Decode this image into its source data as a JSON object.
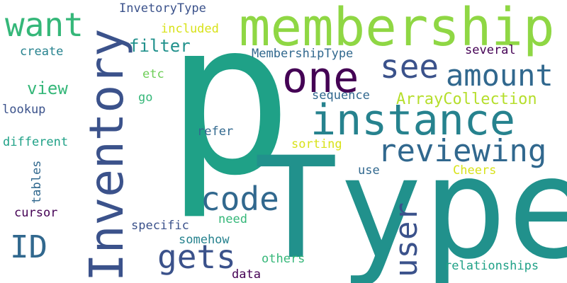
{
  "palette": {
    "background": "#ffffff",
    "dark_purple": "#440154",
    "indigo": "#3b528b",
    "blue": "#31688e",
    "teal_blue": "#26828e",
    "teal": "#21918c",
    "green_teal": "#1fa187",
    "green": "#35b779",
    "light_green": "#6ece58",
    "lime": "#b5de2b",
    "yellow": "#d8e219"
  },
  "words": {
    "p": "p",
    "type": "Type",
    "membership": "membership",
    "inventory": "Inventory",
    "instance": "instance",
    "one": "one",
    "reviewing": "reviewing",
    "amount": "amount",
    "want": "want",
    "see": "see",
    "code": "code",
    "gets": "gets",
    "user": "user",
    "id": "ID",
    "filter": "filter",
    "array_collection": "ArrayCollection",
    "view": "view",
    "inventory_type": "InvetoryType",
    "membership_type": "MembershipType",
    "included": "included",
    "create": "create",
    "several": "several",
    "etc": "etc",
    "sequence": "sequence",
    "go": "go",
    "lookup": "lookup",
    "different": "different",
    "refer": "refer",
    "sorting": "sorting",
    "tables": "tables",
    "use": "use",
    "cheers": "Cheers",
    "cursor": "cursor",
    "specific": "specific",
    "need": "need",
    "somehow": "somehow",
    "others": "others",
    "data": "data",
    "relationships": "relationships"
  }
}
